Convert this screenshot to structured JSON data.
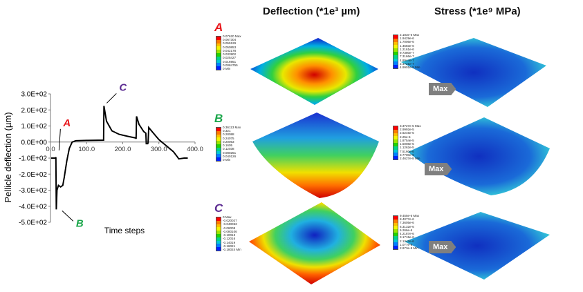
{
  "headers": {
    "deflection": "Deflection (*1e³ µm)",
    "stress": "Stress (*1e⁹ MPa)"
  },
  "colors": {
    "A": "#e8161b",
    "B": "#1aa64a",
    "C": "#5b2a91"
  },
  "colorbar": [
    "#ff0000",
    "#ff7a00",
    "#ffbf00",
    "#f5f500",
    "#9be600",
    "#22d400",
    "#00d48a",
    "#00c8d8",
    "#0080ff",
    "#0020ff"
  ],
  "rows": [
    {
      "letter": "A",
      "deflection": [
        "0.07620 Max",
        "0.067304",
        "0.059129",
        "0.050853",
        "0.042178",
        "0.033902",
        "0.025427",
        "0.016951",
        "0.0084755",
        "0 Min"
      ],
      "stress": [
        "2.183e-6 Max",
        "1.9429e-6",
        "1.7006e-6",
        "1.4583e-6",
        "1.2161e-6",
        "9.7380e-7",
        "7.3166e-7",
        "4.8944e-7",
        "2.4721e-7",
        "4.9901e-9 Min"
      ],
      "max_label": "Max"
    },
    {
      "letter": "B",
      "deflection": [
        "0.36113 Max",
        "0.321",
        "0.28088",
        "0.24075",
        "0.20063",
        "0.1605",
        "0.12038",
        "0.080251",
        "0.040126",
        "0 Min"
      ],
      "stress": [
        "3.3727e-5 Max",
        "2.9992e-5",
        "2.6246e-5",
        "2.25e-5",
        "1.8754e-5",
        "1.5008e-5",
        "1.1262e-5",
        "7.5160e-6",
        "3.7700e-6",
        "2.4627e-8 Min"
      ],
      "max_label": "Max"
    },
    {
      "letter": "C",
      "deflection": [
        "0 Max",
        "-0.020027",
        "-0.040053",
        "-0.06008",
        "-0.080106",
        "-0.10013",
        "-0.12016",
        "-0.14019",
        "-0.16021",
        "-0.18024 Min"
      ],
      "stress": [
        "9.455e-6 Max",
        "8.4077e-6",
        "7.3605e-6",
        "6.3132e-6",
        "5.266e-6",
        "4.2187e-6",
        "3.1715e-6",
        "2.1242e-6",
        "1.077e-6",
        "2.973e-8 Min"
      ],
      "max_label": "Max"
    }
  ],
  "chart_data": {
    "type": "line",
    "xlabel": "Time steps",
    "ylabel": "Pellicle deflection (µm)",
    "xlim": [
      0,
      400
    ],
    "ylim": [
      -500,
      300
    ],
    "xticks": [
      "0.0",
      "100.0",
      "200.0",
      "300.0",
      "400.0"
    ],
    "yticks": [
      "3.0E+02",
      "2.0E+02",
      "1.0E+02",
      "0.0E+00",
      "-1.0E+02",
      "-2.0E+02",
      "-3.0E+02",
      "-4.0E+02",
      "-5.0E+02"
    ],
    "grid": false,
    "x": [
      2,
      14,
      15,
      16,
      18,
      22,
      28,
      34,
      38,
      45,
      52,
      60,
      70,
      100,
      147,
      148,
      155,
      170,
      190,
      215,
      236,
      237,
      238,
      245,
      258,
      264,
      265,
      269,
      270,
      272,
      285,
      300,
      340,
      352,
      355,
      370,
      380
    ],
    "y": [
      -100,
      -100,
      -95,
      -420,
      -300,
      -270,
      -280,
      -270,
      -220,
      -120,
      -40,
      0,
      8,
      10,
      12,
      225,
      130,
      70,
      48,
      35,
      25,
      20,
      160,
      110,
      65,
      55,
      -10,
      -10,
      -5,
      90,
      55,
      15,
      -60,
      -95,
      -105,
      -100,
      -100
    ],
    "annotations": [
      {
        "text": "A",
        "x": 16,
        "y": -95
      },
      {
        "text": "B",
        "x": 17,
        "y": -420
      },
      {
        "text": "C",
        "x": 148,
        "y": 225
      }
    ]
  }
}
